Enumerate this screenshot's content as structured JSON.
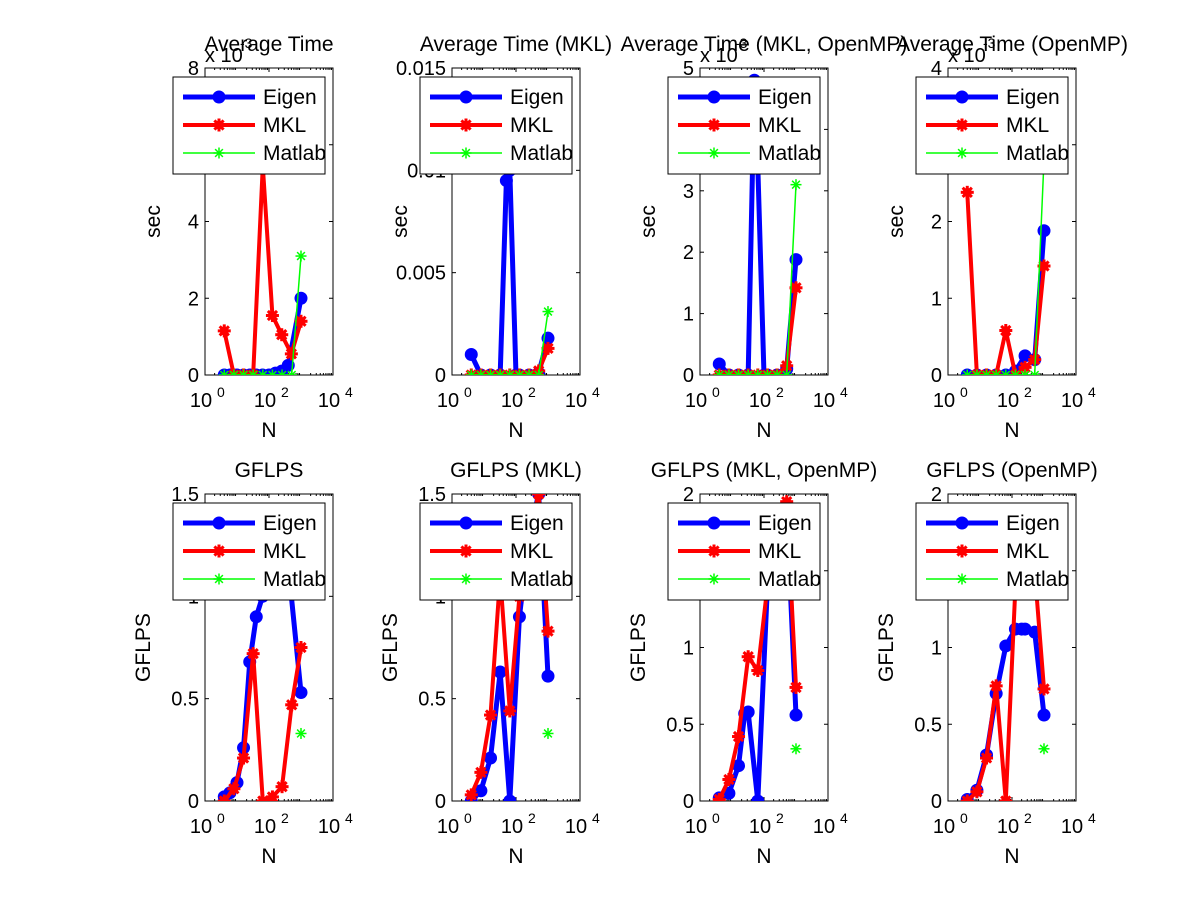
{
  "figure": {
    "background": "#ffffff"
  },
  "chart_data": [
    {
      "type": "line",
      "title": "Average Time",
      "xlabel": "N",
      "ylabel": "sec",
      "xscale": "log",
      "xlim": [
        1,
        10000
      ],
      "ylim": [
        0,
        8
      ],
      "y_multiplier": "x 10",
      "y_multiplier_exp": "-3",
      "yticks": [
        0,
        2,
        4,
        6,
        8
      ],
      "yticklabels": [
        "0",
        "2",
        "4",
        "6",
        "8"
      ],
      "xticks": [
        1,
        100,
        10000
      ],
      "xtick_base": "10",
      "xtick_exps": [
        "0",
        "2",
        "4"
      ],
      "legend": "top-right",
      "series": [
        {
          "name": "Eigen",
          "color": "#0000ff",
          "marker": "dot",
          "x": [
            4,
            6,
            10,
            16,
            25,
            40,
            63,
            100,
            160,
            250,
            400,
            1000
          ],
          "y": [
            0,
            0,
            0,
            0,
            0,
            0,
            0,
            0,
            0.05,
            0.1,
            0.25,
            2.0
          ]
        },
        {
          "name": "MKL",
          "color": "#ff0000",
          "marker": "star",
          "x": [
            4,
            8,
            16,
            32,
            64,
            128,
            250,
            500,
            1000
          ],
          "y": [
            1.15,
            0,
            0,
            0,
            5.45,
            1.55,
            1.05,
            0.55,
            1.4
          ]
        },
        {
          "name": "Matlab",
          "color": "#00ff00",
          "marker": "asterisk",
          "x": [
            4,
            8,
            16,
            32,
            64,
            128,
            256,
            512,
            1000
          ],
          "y": [
            0,
            0,
            0,
            0,
            0,
            0,
            0,
            0,
            3.1
          ]
        }
      ]
    },
    {
      "type": "line",
      "title": "Average Time (MKL)",
      "xlabel": "N",
      "ylabel": "sec",
      "xscale": "log",
      "xlim": [
        1,
        10000
      ],
      "ylim": [
        0,
        0.015
      ],
      "y_multiplier": "",
      "y_multiplier_exp": "",
      "yticks": [
        0,
        0.005,
        0.01,
        0.015
      ],
      "yticklabels": [
        "0",
        "0.005",
        "0.01",
        "0.015"
      ],
      "xticks": [
        1,
        100,
        10000
      ],
      "xtick_base": "10",
      "xtick_exps": [
        "0",
        "2",
        "4"
      ],
      "legend": "top-right",
      "series": [
        {
          "name": "Eigen",
          "color": "#0000ff",
          "marker": "dot",
          "x": [
            4,
            8,
            16,
            32,
            50,
            64,
            100,
            128,
            256,
            512,
            1000
          ],
          "y": [
            0.001,
            0,
            0,
            0,
            0.0095,
            0.01,
            0,
            0,
            0,
            0.0001,
            0.0018
          ]
        },
        {
          "name": "MKL",
          "color": "#ff0000",
          "marker": "star",
          "x": [
            4,
            8,
            16,
            32,
            64,
            128,
            256,
            512,
            1000
          ],
          "y": [
            0,
            0,
            0,
            0,
            0,
            0,
            0,
            0.0002,
            0.0013
          ]
        },
        {
          "name": "Matlab",
          "color": "#00ff00",
          "marker": "asterisk",
          "x": [
            4,
            8,
            16,
            32,
            64,
            128,
            256,
            512,
            1000
          ],
          "y": [
            0,
            0,
            0,
            0,
            0,
            0,
            0,
            0,
            0.0031
          ]
        }
      ]
    },
    {
      "type": "line",
      "title": "Average Time (MKL, OpenMP)",
      "xlabel": "N",
      "ylabel": "sec",
      "xscale": "log",
      "xlim": [
        1,
        10000
      ],
      "ylim": [
        0,
        5
      ],
      "y_multiplier": "x 10",
      "y_multiplier_exp": "-3",
      "yticks": [
        0,
        1,
        2,
        3,
        4,
        5
      ],
      "yticklabels": [
        "0",
        "1",
        "2",
        "3",
        "4",
        "5"
      ],
      "xticks": [
        1,
        100,
        10000
      ],
      "xtick_base": "10",
      "xtick_exps": [
        "0",
        "2",
        "4"
      ],
      "legend": "top-right",
      "series": [
        {
          "name": "Eigen",
          "color": "#0000ff",
          "marker": "dot",
          "x": [
            4,
            8,
            16,
            32,
            50,
            64,
            100,
            128,
            256,
            512,
            1000
          ],
          "y": [
            0.18,
            0,
            0,
            0,
            4.8,
            3.4,
            0,
            0,
            0,
            0.1,
            1.88
          ]
        },
        {
          "name": "MKL",
          "color": "#ff0000",
          "marker": "star",
          "x": [
            4,
            8,
            16,
            32,
            64,
            128,
            256,
            512,
            1000
          ],
          "y": [
            0,
            0,
            0,
            0,
            0,
            0,
            0,
            0.15,
            1.42
          ]
        },
        {
          "name": "Matlab",
          "color": "#00ff00",
          "marker": "asterisk",
          "x": [
            4,
            8,
            16,
            32,
            64,
            128,
            256,
            512,
            1000
          ],
          "y": [
            0,
            0,
            0,
            0,
            0,
            0,
            0,
            0,
            3.1
          ]
        }
      ]
    },
    {
      "type": "line",
      "title": "Average Time (OpenMP)",
      "xlabel": "N",
      "ylabel": "sec",
      "xscale": "log",
      "xlim": [
        1,
        10000
      ],
      "ylim": [
        0,
        4
      ],
      "y_multiplier": "x 10",
      "y_multiplier_exp": "-3",
      "yticks": [
        0,
        1,
        2,
        3,
        4
      ],
      "yticklabels": [
        "0",
        "1",
        "2",
        "3",
        "4"
      ],
      "xticks": [
        1,
        100,
        10000
      ],
      "xtick_base": "10",
      "xtick_exps": [
        "0",
        "2",
        "4"
      ],
      "legend": "top-right",
      "series": [
        {
          "name": "Eigen",
          "color": "#0000ff",
          "marker": "dot",
          "x": [
            4,
            8,
            16,
            32,
            64,
            128,
            256,
            512,
            1000
          ],
          "y": [
            0,
            0,
            0,
            0,
            0,
            0.05,
            0.25,
            0.2,
            1.88
          ]
        },
        {
          "name": "MKL",
          "color": "#ff0000",
          "marker": "star",
          "x": [
            4,
            8,
            16,
            32,
            64,
            128,
            256,
            512,
            1000
          ],
          "y": [
            2.38,
            0,
            0,
            0,
            0.58,
            0,
            0.1,
            0.2,
            1.42
          ]
        },
        {
          "name": "Matlab",
          "color": "#00ff00",
          "marker": "asterisk",
          "x": [
            4,
            8,
            16,
            32,
            64,
            128,
            256,
            512,
            1000
          ],
          "y": [
            0,
            0,
            0,
            0,
            0,
            0,
            0,
            0,
            2.8
          ]
        }
      ]
    },
    {
      "type": "line",
      "title": "GFLPS",
      "xlabel": "N",
      "ylabel": "GFLPS",
      "xscale": "log",
      "xlim": [
        1,
        10000
      ],
      "ylim": [
        0,
        1.5
      ],
      "y_multiplier": "",
      "y_multiplier_exp": "",
      "yticks": [
        0,
        0.5,
        1,
        1.5
      ],
      "yticklabels": [
        "0",
        "0.5",
        "1",
        "1.5"
      ],
      "xticks": [
        1,
        100,
        10000
      ],
      "xtick_base": "10",
      "xtick_exps": [
        "0",
        "2",
        "4"
      ],
      "legend": "top-right",
      "series": [
        {
          "name": "Eigen",
          "color": "#0000ff",
          "marker": "dot",
          "x": [
            4,
            6,
            10,
            16,
            25,
            40,
            63,
            100,
            160,
            250,
            400,
            1000
          ],
          "y": [
            0.02,
            0.04,
            0.09,
            0.26,
            0.68,
            0.9,
            1.0,
            1.1,
            1.2,
            1.3,
            1.15,
            0.53
          ]
        },
        {
          "name": "MKL",
          "color": "#ff0000",
          "marker": "star",
          "x": [
            4,
            8,
            16,
            32,
            64,
            128,
            256,
            512,
            1000
          ],
          "y": [
            0,
            0.06,
            0.21,
            0.72,
            0,
            0.02,
            0.07,
            0.47,
            0.75
          ]
        },
        {
          "name": "Matlab",
          "color": "#00ff00",
          "marker": "asterisk",
          "x": [
            1000
          ],
          "y": [
            0.33
          ]
        }
      ]
    },
    {
      "type": "line",
      "title": "GFLPS (MKL)",
      "xlabel": "N",
      "ylabel": "GFLPS",
      "xscale": "log",
      "xlim": [
        1,
        10000
      ],
      "ylim": [
        0,
        1.5
      ],
      "y_multiplier": "",
      "y_multiplier_exp": "",
      "yticks": [
        0,
        0.5,
        1,
        1.5
      ],
      "yticklabels": [
        "0",
        "0.5",
        "1",
        "1.5"
      ],
      "xticks": [
        1,
        100,
        10000
      ],
      "xtick_base": "10",
      "xtick_exps": [
        "0",
        "2",
        "4"
      ],
      "legend": "top-right",
      "series": [
        {
          "name": "Eigen",
          "color": "#0000ff",
          "marker": "dot",
          "x": [
            4,
            8,
            16,
            32,
            64,
            128,
            256,
            512,
            1000
          ],
          "y": [
            0,
            0.05,
            0.21,
            0.63,
            0,
            0.9,
            1.3,
            1.5,
            0.61
          ]
        },
        {
          "name": "MKL",
          "color": "#ff0000",
          "marker": "star",
          "x": [
            4,
            8,
            16,
            32,
            64,
            128,
            256,
            512,
            1000
          ],
          "y": [
            0.03,
            0.14,
            0.42,
            1.1,
            0.44,
            1.0,
            1.3,
            1.5,
            0.83
          ]
        },
        {
          "name": "Matlab",
          "color": "#00ff00",
          "marker": "asterisk",
          "x": [
            1000
          ],
          "y": [
            0.33
          ]
        }
      ]
    },
    {
      "type": "line",
      "title": "GFLPS (MKL, OpenMP)",
      "xlabel": "N",
      "ylabel": "GFLPS",
      "xscale": "log",
      "xlim": [
        1,
        10000
      ],
      "ylim": [
        0,
        2
      ],
      "y_multiplier": "",
      "y_multiplier_exp": "",
      "yticks": [
        0,
        0.5,
        1,
        1.5,
        2
      ],
      "yticklabels": [
        "0",
        "0.5",
        "1",
        "1.5",
        "2"
      ],
      "xticks": [
        1,
        100,
        10000
      ],
      "xtick_base": "10",
      "xtick_exps": [
        "0",
        "2",
        "4"
      ],
      "legend": "top-right",
      "series": [
        {
          "name": "Eigen",
          "color": "#0000ff",
          "marker": "dot",
          "x": [
            4,
            8,
            16,
            25,
            32,
            64,
            128,
            256,
            512,
            1000
          ],
          "y": [
            0.02,
            0.05,
            0.23,
            0.57,
            0.58,
            0,
            1.4,
            1.7,
            1.9,
            0.56
          ]
        },
        {
          "name": "MKL",
          "color": "#ff0000",
          "marker": "star",
          "x": [
            4,
            8,
            16,
            32,
            64,
            128,
            256,
            512,
            1000
          ],
          "y": [
            0.01,
            0.14,
            0.42,
            0.94,
            0.85,
            1.4,
            1.8,
            1.95,
            0.74
          ]
        },
        {
          "name": "Matlab",
          "color": "#00ff00",
          "marker": "asterisk",
          "x": [
            1000
          ],
          "y": [
            0.34
          ]
        }
      ]
    },
    {
      "type": "line",
      "title": "GFLPS (OpenMP)",
      "xlabel": "N",
      "ylabel": "GFLPS",
      "xscale": "log",
      "xlim": [
        1,
        10000
      ],
      "ylim": [
        0,
        2
      ],
      "y_multiplier": "",
      "y_multiplier_exp": "",
      "yticks": [
        0,
        0.5,
        1,
        1.5,
        2
      ],
      "yticklabels": [
        "0",
        "0.5",
        "1",
        "1.5",
        "2"
      ],
      "xticks": [
        1,
        100,
        10000
      ],
      "xtick_base": "10",
      "xtick_exps": [
        "0",
        "2",
        "4"
      ],
      "legend": "top-right",
      "series": [
        {
          "name": "Eigen",
          "color": "#0000ff",
          "marker": "dot",
          "x": [
            4,
            8,
            16,
            32,
            64,
            128,
            200,
            256,
            512,
            1000
          ],
          "y": [
            0.01,
            0.07,
            0.3,
            0.7,
            1.01,
            1.12,
            1.12,
            1.12,
            1.1,
            0.56
          ]
        },
        {
          "name": "MKL",
          "color": "#ff0000",
          "marker": "star",
          "x": [
            4,
            8,
            16,
            32,
            64,
            128,
            256,
            512,
            1000
          ],
          "y": [
            0,
            0.06,
            0.28,
            0.75,
            0,
            1.4,
            1.8,
            1.5,
            0.73
          ]
        },
        {
          "name": "Matlab",
          "color": "#00ff00",
          "marker": "asterisk",
          "x": [
            1000
          ],
          "y": [
            0.34
          ]
        }
      ]
    }
  ]
}
